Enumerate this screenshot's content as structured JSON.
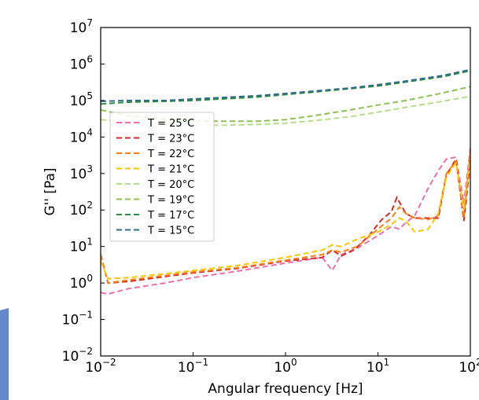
{
  "chart_data": {
    "type": "line",
    "xlabel": "Angular frequency [Hz]",
    "ylabel": "G'' [Pa]",
    "xscale": "log",
    "yscale": "log",
    "xlim": [
      0.01,
      100
    ],
    "ylim": [
      0.01,
      10000000
    ],
    "grid": false,
    "legend_position": "middle-left",
    "x_ticks": [
      {
        "value": 0.01,
        "base": "10",
        "exp": "−2"
      },
      {
        "value": 0.1,
        "base": "10",
        "exp": "−1"
      },
      {
        "value": 1,
        "base": "10",
        "exp": "0"
      },
      {
        "value": 10,
        "base": "10",
        "exp": "1"
      },
      {
        "value": 100,
        "base": "10",
        "exp": "2"
      }
    ],
    "y_ticks": [
      {
        "value": 0.01,
        "base": "10",
        "exp": "−2"
      },
      {
        "value": 0.1,
        "base": "10",
        "exp": "−1"
      },
      {
        "value": 1,
        "base": "10",
        "exp": "0"
      },
      {
        "value": 10,
        "base": "10",
        "exp": "1"
      },
      {
        "value": 100,
        "base": "10",
        "exp": "2"
      },
      {
        "value": 1000,
        "base": "10",
        "exp": "3"
      },
      {
        "value": 10000,
        "base": "10",
        "exp": "4"
      },
      {
        "value": 100000,
        "base": "10",
        "exp": "5"
      },
      {
        "value": 1000000,
        "base": "10",
        "exp": "6"
      },
      {
        "value": 10000000,
        "base": "10",
        "exp": "7"
      }
    ],
    "series": [
      {
        "name": "T = 25°C",
        "color": "#f06eaa",
        "x": [
          0.01,
          0.012,
          0.02,
          0.05,
          0.1,
          0.3,
          1,
          2.5,
          3.2,
          4,
          6,
          10,
          14,
          17,
          20,
          25,
          35,
          45,
          55,
          70,
          85,
          100
        ],
        "y": [
          0.55,
          0.5,
          0.7,
          1.0,
          1.4,
          2.1,
          3.5,
          5,
          2.2,
          6,
          9,
          20,
          35,
          30,
          45,
          70,
          400,
          1200,
          2500,
          2800,
          150,
          5000
        ]
      },
      {
        "name": "T = 23°C",
        "color": "#d62728",
        "x": [
          0.01,
          0.012,
          0.02,
          0.05,
          0.1,
          0.3,
          1,
          2.5,
          3.2,
          4,
          5.5,
          8,
          11,
          14,
          16,
          20,
          25,
          35,
          45,
          55,
          70,
          85,
          100
        ],
        "y": [
          6,
          1.0,
          1.1,
          1.5,
          1.9,
          2.5,
          4,
          5,
          8,
          5.5,
          8,
          20,
          55,
          90,
          220,
          80,
          60,
          60,
          60,
          900,
          2500,
          50,
          2200
        ]
      },
      {
        "name": "T = 22°C",
        "color": "#ff7f0e",
        "x": [
          0.01,
          0.012,
          0.02,
          0.05,
          0.1,
          0.3,
          1,
          2.5,
          3.2,
          4,
          6,
          10,
          14,
          17,
          20,
          25,
          35,
          45,
          55,
          70,
          85,
          100
        ],
        "y": [
          6,
          1.0,
          1.2,
          1.6,
          2.0,
          2.6,
          4.2,
          6,
          8,
          7,
          10,
          30,
          60,
          120,
          80,
          60,
          55,
          70,
          1000,
          2200,
          60,
          4000
        ]
      },
      {
        "name": "T = 21°C",
        "color": "#f7c600",
        "x": [
          0.01,
          0.012,
          0.02,
          0.05,
          0.1,
          0.3,
          1,
          2.5,
          3.2,
          4,
          6,
          10,
          14,
          17,
          20,
          25,
          35,
          45,
          55,
          70,
          85,
          100
        ],
        "y": [
          4,
          1.3,
          1.4,
          1.8,
          2.2,
          3.0,
          5,
          8,
          11,
          10,
          16,
          25,
          40,
          60,
          50,
          25,
          30,
          80,
          800,
          2000,
          100,
          3000
        ]
      },
      {
        "name": "T = 20°C",
        "color": "#b5dc8a",
        "x": [
          0.01,
          0.02,
          0.05,
          0.1,
          0.2,
          0.5,
          1,
          2,
          5,
          10,
          20,
          50,
          100
        ],
        "y": [
          30000,
          25000,
          22000,
          21000,
          21000,
          22000,
          24000,
          28000,
          36000,
          48000,
          65000,
          95000,
          130000
        ]
      },
      {
        "name": "T = 19°C",
        "color": "#8cc152",
        "x": [
          0.01,
          0.02,
          0.05,
          0.1,
          0.2,
          0.5,
          1,
          2,
          5,
          10,
          20,
          50,
          100
        ],
        "y": [
          55000,
          38000,
          30000,
          28000,
          27000,
          27000,
          30000,
          38000,
          55000,
          75000,
          100000,
          160000,
          240000
        ]
      },
      {
        "name": "T = 17°C",
        "color": "#2e8b45",
        "x": [
          0.01,
          0.02,
          0.05,
          0.1,
          0.2,
          0.5,
          1,
          2,
          5,
          10,
          20,
          50,
          100
        ],
        "y": [
          80000,
          90000,
          95000,
          100000,
          110000,
          125000,
          145000,
          170000,
          210000,
          250000,
          320000,
          450000,
          650000
        ]
      },
      {
        "name": "T = 15°C",
        "color": "#2b6a8a",
        "x": [
          0.01,
          0.02,
          0.05,
          0.1,
          0.2,
          0.5,
          1,
          2,
          5,
          10,
          20,
          50,
          100
        ],
        "y": [
          95000,
          100000,
          100000,
          110000,
          120000,
          135000,
          155000,
          180000,
          220000,
          270000,
          340000,
          480000,
          700000
        ]
      }
    ]
  }
}
